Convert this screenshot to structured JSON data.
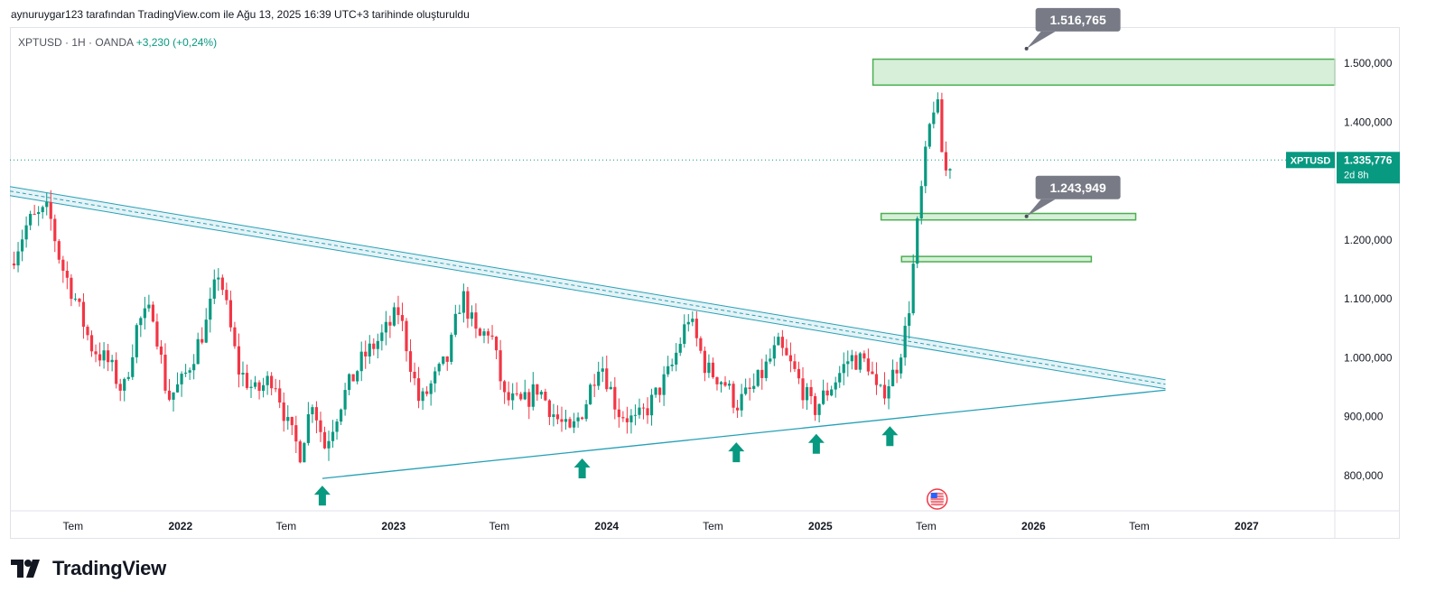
{
  "header": {
    "attribution": "aynuruygar123 tarafından TradingView.com ile Ağu 13, 2025 16:39 UTC+3 tarihinde oluşturuldu"
  },
  "legend": {
    "symbol": "XPTUSD · 1H · OANDA",
    "change": "+3,230 (+0,24%)"
  },
  "footer": {
    "brand": "TradingView"
  },
  "colors": {
    "up": "#089981",
    "down": "#f23645",
    "zone_fill": "#d7efd9",
    "zone_stroke": "#4caf50",
    "trend": "#26a0b7",
    "callout": "#787b86"
  },
  "chart_data": {
    "type": "candlestick",
    "title": "",
    "xlabel": "",
    "ylabel": "",
    "ylim": [
      740000,
      1560000
    ],
    "y_ticks": [
      {
        "value": 1500000,
        "label": "1.500,000"
      },
      {
        "value": 1400000,
        "label": "1.400,000"
      },
      {
        "value": 1200000,
        "label": "1.200,000"
      },
      {
        "value": 1100000,
        "label": "1.100,000"
      },
      {
        "value": 1000000,
        "label": "1.000,000"
      },
      {
        "value": 900000,
        "label": "900,000"
      },
      {
        "value": 800000,
        "label": "800,000"
      }
    ],
    "x_range": [
      "2021-03-15",
      "2027-06-01"
    ],
    "x_ticks": [
      {
        "date": "2021-07-01",
        "label": "Tem",
        "bold": false
      },
      {
        "date": "2022-01-01",
        "label": "2022",
        "bold": true
      },
      {
        "date": "2022-07-01",
        "label": "Tem",
        "bold": false
      },
      {
        "date": "2023-01-01",
        "label": "2023",
        "bold": true
      },
      {
        "date": "2023-07-01",
        "label": "Tem",
        "bold": false
      },
      {
        "date": "2024-01-01",
        "label": "2024",
        "bold": true
      },
      {
        "date": "2024-07-01",
        "label": "Tem",
        "bold": false
      },
      {
        "date": "2025-01-01",
        "label": "2025",
        "bold": true
      },
      {
        "date": "2025-07-01",
        "label": "Tem",
        "bold": false
      },
      {
        "date": "2026-01-01",
        "label": "2026",
        "bold": true
      },
      {
        "date": "2026-07-01",
        "label": "Tem",
        "bold": false
      },
      {
        "date": "2027-01-01",
        "label": "2027",
        "bold": true
      }
    ],
    "current_price": {
      "symbol": "XPTUSD",
      "value": 1335776,
      "label": "1.335,776",
      "countdown": "2d 8h"
    },
    "close_path": [
      [
        "2021-03-15",
        1160000
      ],
      [
        "2021-04-15",
        1230000
      ],
      [
        "2021-05-20",
        1250000
      ],
      [
        "2021-06-10",
        1160000
      ],
      [
        "2021-07-05",
        1100000
      ],
      [
        "2021-08-01",
        1020000
      ],
      [
        "2021-09-01",
        990000
      ],
      [
        "2021-09-25",
        940000
      ],
      [
        "2021-10-20",
        1060000
      ],
      [
        "2021-11-15",
        1080000
      ],
      [
        "2021-12-10",
        930000
      ],
      [
        "2022-01-05",
        960000
      ],
      [
        "2022-02-15",
        1060000
      ],
      [
        "2022-03-08",
        1150000
      ],
      [
        "2022-04-10",
        980000
      ],
      [
        "2022-05-10",
        940000
      ],
      [
        "2022-06-10",
        970000
      ],
      [
        "2022-07-05",
        880000
      ],
      [
        "2022-07-25",
        840000
      ],
      [
        "2022-08-15",
        930000
      ],
      [
        "2022-09-05",
        850000
      ],
      [
        "2022-10-05",
        930000
      ],
      [
        "2022-11-10",
        1000000
      ],
      [
        "2022-12-15",
        1040000
      ],
      [
        "2023-01-10",
        1080000
      ],
      [
        "2023-02-15",
        920000
      ],
      [
        "2023-03-10",
        960000
      ],
      [
        "2023-04-05",
        1000000
      ],
      [
        "2023-04-28",
        1110000
      ],
      [
        "2023-05-25",
        1030000
      ],
      [
        "2023-06-15",
        1050000
      ],
      [
        "2023-07-10",
        930000
      ],
      [
        "2023-08-10",
        920000
      ],
      [
        "2023-09-05",
        950000
      ],
      [
        "2023-10-05",
        900000
      ],
      [
        "2023-10-30",
        870000
      ],
      [
        "2023-11-25",
        920000
      ],
      [
        "2023-12-20",
        1000000
      ],
      [
        "2024-01-20",
        910000
      ],
      [
        "2024-02-20",
        890000
      ],
      [
        "2024-03-15",
        920000
      ],
      [
        "2024-04-20",
        980000
      ],
      [
        "2024-05-20",
        1070000
      ],
      [
        "2024-06-20",
        980000
      ],
      [
        "2024-07-20",
        960000
      ],
      [
        "2024-08-10",
        920000
      ],
      [
        "2024-09-10",
        950000
      ],
      [
        "2024-10-20",
        1020000
      ],
      [
        "2024-11-15",
        980000
      ],
      [
        "2024-12-20",
        910000
      ],
      [
        "2025-01-25",
        960000
      ],
      [
        "2025-02-20",
        1000000
      ],
      [
        "2025-03-25",
        990000
      ],
      [
        "2025-04-10",
        930000
      ],
      [
        "2025-05-10",
        980000
      ],
      [
        "2025-05-30",
        1060000
      ],
      [
        "2025-06-20",
        1260000
      ],
      [
        "2025-07-05",
        1380000
      ],
      [
        "2025-07-18",
        1450000
      ],
      [
        "2025-08-01",
        1310000
      ],
      [
        "2025-08-13",
        1335776
      ]
    ],
    "zones": [
      {
        "from": 1463000,
        "to": 1507000,
        "x_start": "2025-04-01",
        "x_end": "2027-06-01"
      },
      {
        "from": 1234000,
        "to": 1245000,
        "x_start": "2025-04-15",
        "x_end": "2026-06-25"
      },
      {
        "from": 1163000,
        "to": 1172000,
        "x_start": "2025-05-20",
        "x_end": "2026-04-10"
      }
    ],
    "trendlines": [
      {
        "kind": "channel",
        "from": [
          "2021-03-15",
          1283000
        ],
        "to": [
          "2026-08-15",
          955000
        ]
      },
      {
        "kind": "support",
        "from": [
          "2022-09-01",
          795000
        ],
        "to": [
          "2026-08-15",
          945000
        ]
      }
    ],
    "callouts": [
      {
        "label": "1.516,765",
        "value": 1516765,
        "anchor": [
          "2025-12-20",
          1525000
        ]
      },
      {
        "label": "1.243,949",
        "value": 1243949,
        "anchor": [
          "2025-12-20",
          1240000
        ]
      }
    ],
    "arrows": [
      "2022-09-01",
      "2023-11-20",
      "2024-08-10",
      "2024-12-25",
      "2025-04-30"
    ]
  }
}
